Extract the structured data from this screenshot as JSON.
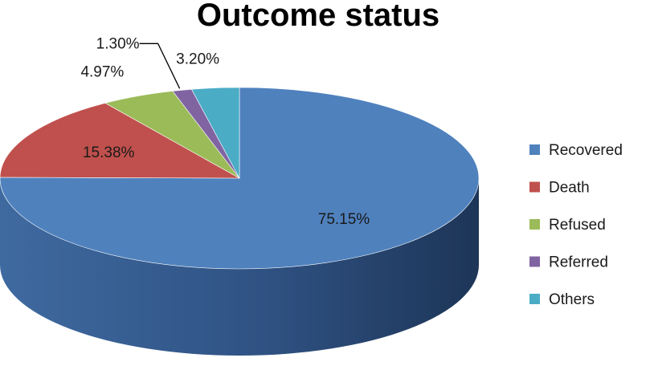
{
  "chart_data": {
    "type": "pie",
    "title": "Outcome status",
    "three_d": true,
    "legend_position": "right",
    "slices": [
      {
        "name": "Recovered",
        "value": 75.15,
        "label": "75.15%",
        "color": "#4F81BD"
      },
      {
        "name": "Death",
        "value": 15.38,
        "label": "15.38%",
        "color": "#C0504D"
      },
      {
        "name": "Refused",
        "value": 4.97,
        "label": "4.97%",
        "color": "#9BBB59"
      },
      {
        "name": "Referred",
        "value": 1.3,
        "label": "1.30%",
        "color": "#8064A2"
      },
      {
        "name": "Others",
        "value": 3.2,
        "label": "3.20%",
        "color": "#4BACC6"
      }
    ]
  }
}
